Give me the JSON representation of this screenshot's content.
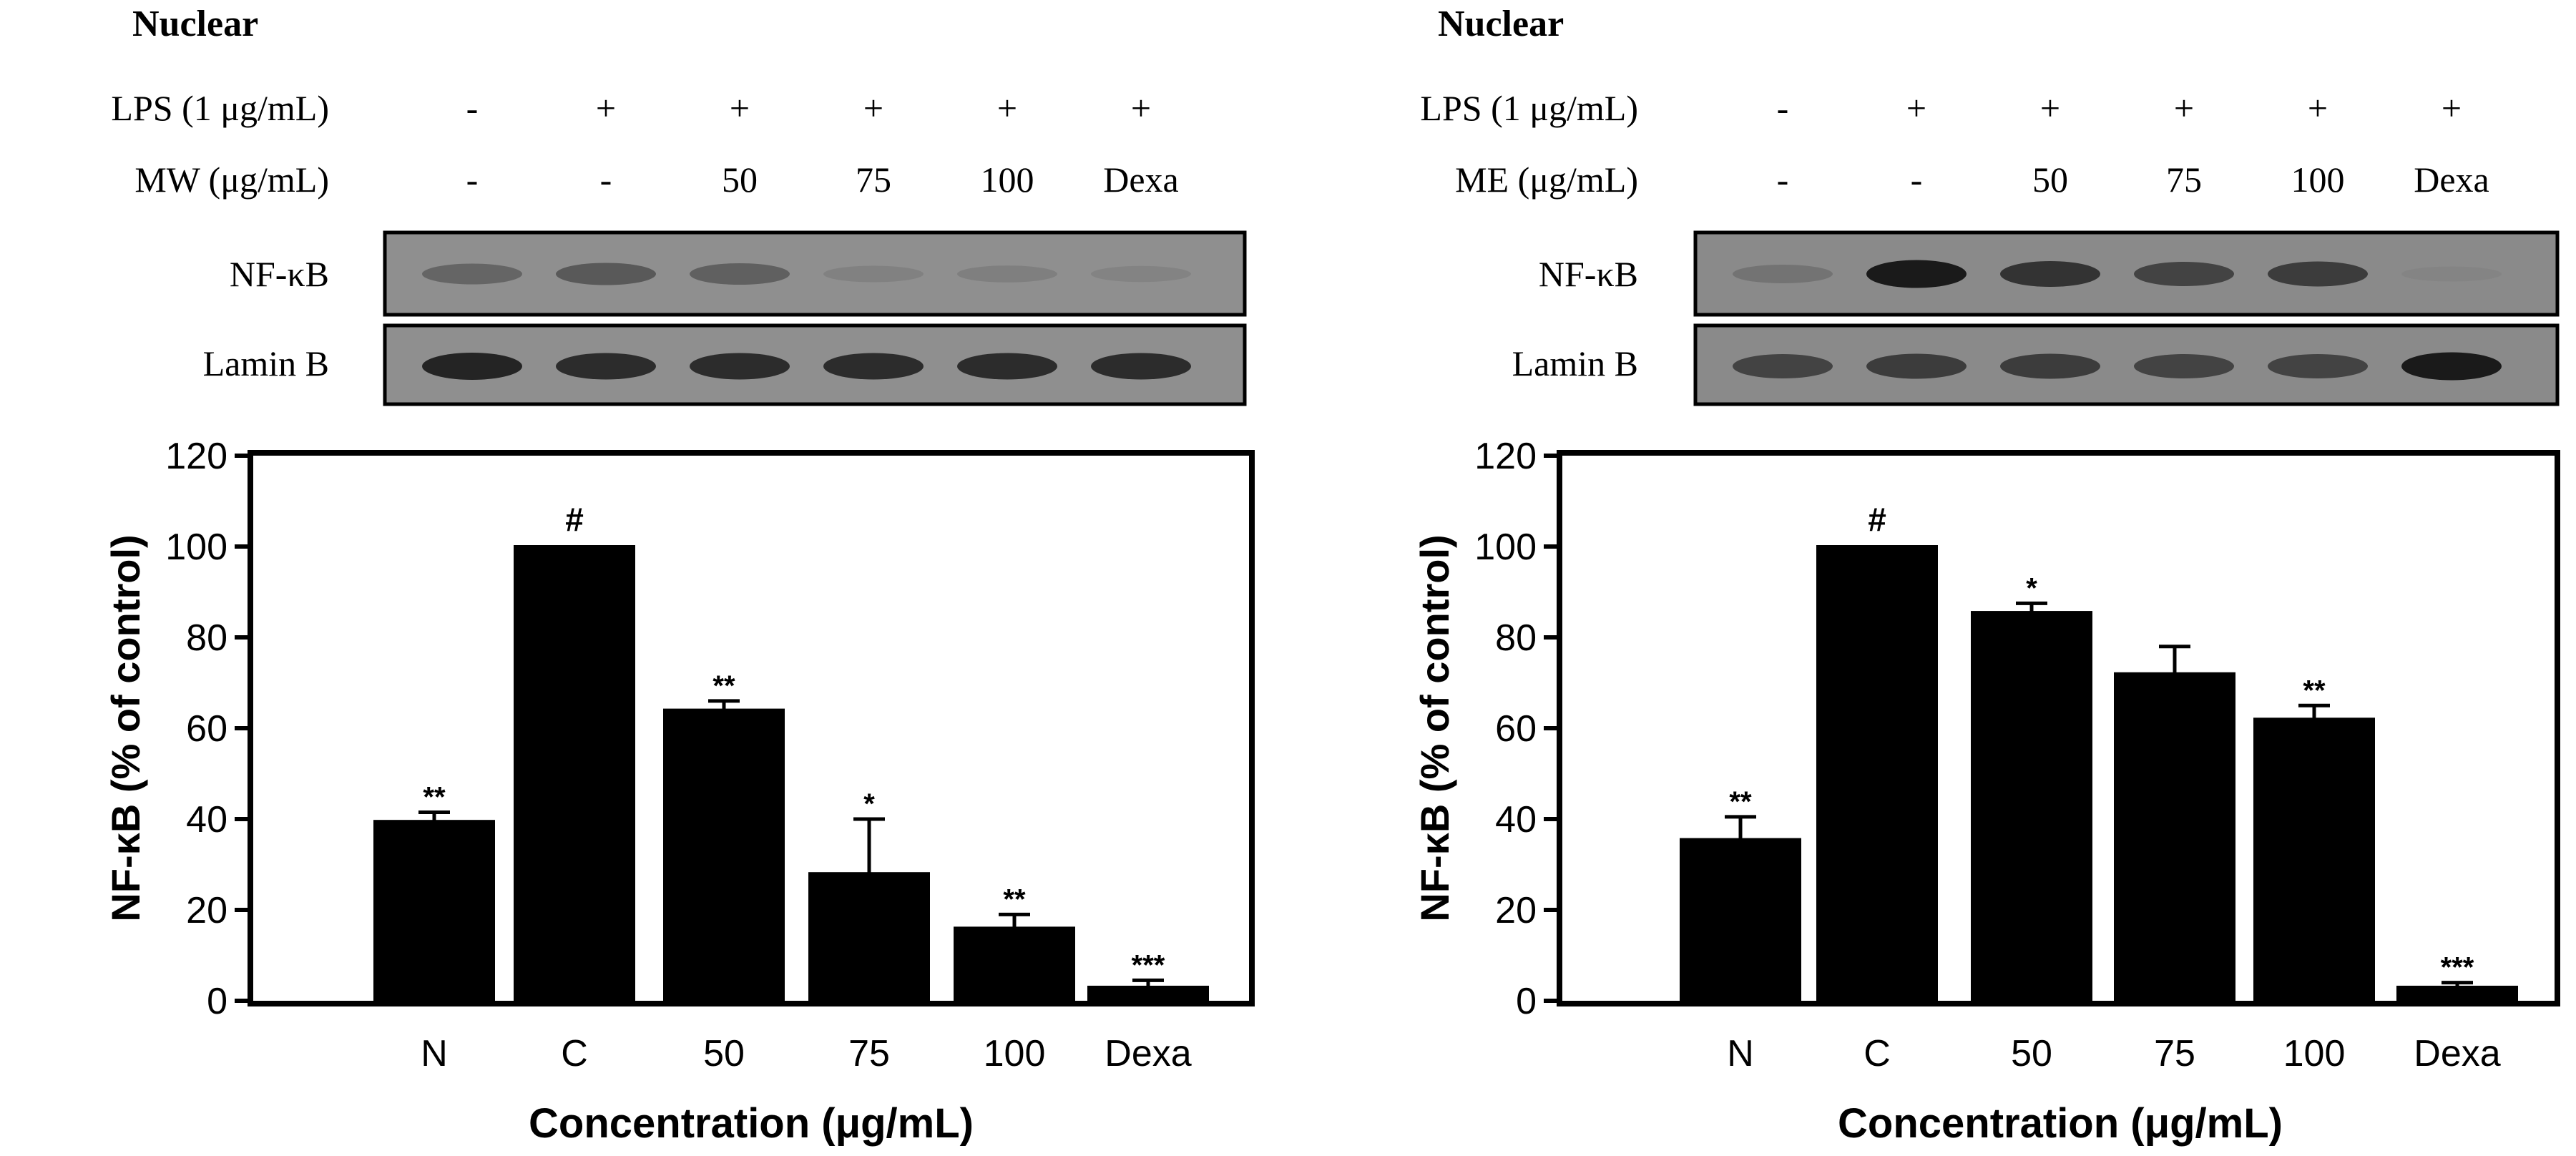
{
  "panels": [
    {
      "header": "Nuclear",
      "rows": [
        {
          "label": "LPS (1 μg/mL)",
          "values": [
            "-",
            "+",
            "+",
            "+",
            "+",
            "+"
          ]
        },
        {
          "label": "MW (μg/mL)",
          "values": [
            "-",
            "-",
            "50",
            "75",
            "100",
            "Dexa"
          ]
        }
      ],
      "blots": [
        {
          "label": "NF-κB",
          "band_intensity": [
            0.45,
            0.55,
            0.5,
            0.15,
            0.18,
            0.12
          ]
        },
        {
          "label": "Lamin B",
          "band_intensity": [
            0.9,
            0.85,
            0.85,
            0.85,
            0.85,
            0.85
          ]
        }
      ]
    },
    {
      "header": "Nuclear",
      "rows": [
        {
          "label": "LPS (1 μg/mL)",
          "values": [
            "-",
            "+",
            "+",
            "+",
            "+",
            "+"
          ]
        },
        {
          "label": "ME (μg/mL)",
          "values": [
            "-",
            "-",
            "50",
            "75",
            "100",
            "Dexa"
          ]
        }
      ],
      "blots": [
        {
          "label": "NF-κB",
          "band_intensity": [
            0.3,
            0.95,
            0.8,
            0.7,
            0.75,
            0.05
          ]
        },
        {
          "label": "Lamin B",
          "band_intensity": [
            0.7,
            0.75,
            0.75,
            0.7,
            0.7,
            0.95
          ]
        }
      ]
    }
  ],
  "chart_data": [
    {
      "type": "bar",
      "categories": [
        "N",
        "C",
        "50",
        "75",
        "100",
        "Dexa"
      ],
      "series": [
        {
          "values": [
            39.5,
            100,
            64,
            28,
            16,
            3
          ],
          "error": [
            2,
            0,
            2,
            12,
            3,
            1.5
          ]
        }
      ],
      "annotations": [
        "**",
        "#",
        "**",
        "*",
        "**",
        "***"
      ],
      "xlabel": "Concentration (μg/mL)",
      "ylabel": "NF-κB (% of control)",
      "ylim": [
        0,
        120
      ],
      "yticks": [
        "0",
        "20",
        "40",
        "60",
        "80",
        "100",
        "120"
      ],
      "colors": {
        "bar": "#000000"
      }
    },
    {
      "type": "bar",
      "categories": [
        "N",
        "C",
        "50",
        "75",
        "100",
        "Dexa"
      ],
      "series": [
        {
          "values": [
            35.5,
            100,
            85.5,
            72,
            62,
            3
          ],
          "error": [
            5,
            0,
            2,
            6,
            3,
            1
          ]
        }
      ],
      "annotations": [
        "**",
        "#",
        "*",
        "",
        "**",
        "***"
      ],
      "xlabel": "Concentration (μg/mL)",
      "ylabel": "NF-κB (% of control)",
      "ylim": [
        0,
        120
      ],
      "yticks": [
        "0",
        "20",
        "40",
        "60",
        "80",
        "100",
        "120"
      ],
      "colors": {
        "bar": "#000000"
      }
    }
  ]
}
